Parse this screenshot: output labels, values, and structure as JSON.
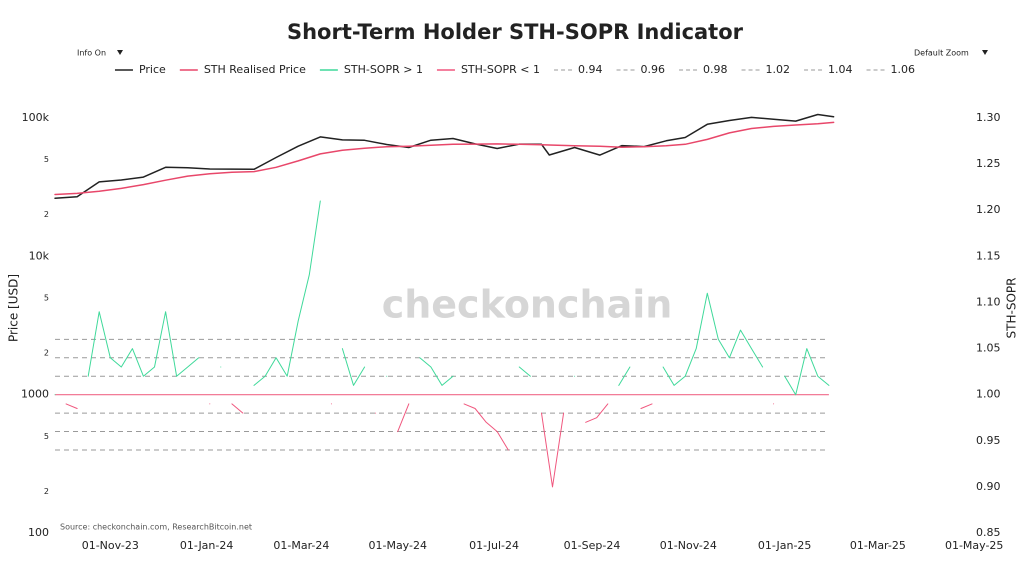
{
  "chart_data": {
    "type": "line",
    "title": "Short-Term Holder STH-SOPR Indicator",
    "controls": {
      "info": "Info On",
      "zoom": "Default Zoom"
    },
    "source": "Source: checkonchain.com, ResearchBitcoin.net",
    "watermark": "checkonchain",
    "y_label": "Price [USD]",
    "y2_label": "STH-SOPR",
    "log_y": true,
    "grid": false,
    "xlim": [
      "2023-09-27",
      "2025-05-11"
    ],
    "xticks": [
      {
        "value": "2023-11-01",
        "label": "01-Nov-23"
      },
      {
        "value": "2024-01-01",
        "label": "01-Jan-24"
      },
      {
        "value": "2024-03-01",
        "label": "01-Mar-24"
      },
      {
        "value": "2024-05-01",
        "label": "01-May-24"
      },
      {
        "value": "2024-07-01",
        "label": "01-Jul-24"
      },
      {
        "value": "2024-09-01",
        "label": "01-Sep-24"
      },
      {
        "value": "2024-11-01",
        "label": "01-Nov-24"
      },
      {
        "value": "2025-01-01",
        "label": "01-Jan-25"
      },
      {
        "value": "2025-03-01",
        "label": "01-Mar-25"
      },
      {
        "value": "2025-05-01",
        "label": "01-May-25"
      }
    ],
    "ylim": [
      100,
      100000
    ],
    "yticks": [
      100,
      {
        "value": 200,
        "label": "2"
      },
      {
        "value": 500,
        "label": "5"
      },
      1000,
      {
        "value": 2000,
        "label": "2"
      },
      {
        "value": 5000,
        "label": "5"
      },
      {
        "value": 10000,
        "label": "10k"
      },
      {
        "value": 20000,
        "label": "2"
      },
      {
        "value": 50000,
        "label": "5"
      },
      {
        "value": 100000,
        "label": "100k"
      }
    ],
    "y2lim": [
      0.85,
      1.3
    ],
    "y2ticks": [
      0.85,
      {
        "value": 0.9,
        "label": "0.90"
      },
      0.95,
      {
        "value": 1,
        "label": "1.00"
      },
      1.05,
      {
        "value": 1.1,
        "label": "1.10"
      },
      1.15,
      {
        "value": 1.2,
        "label": "1.20"
      },
      1.25,
      {
        "value": 1.3,
        "label": "1.30"
      }
    ],
    "levels": [
      0.94,
      0.96,
      0.98,
      1.02,
      1.04,
      1.06
    ],
    "level_color": "#9a9a9a",
    "baseline": 1,
    "baseline_color": "#f06a8a",
    "series": [
      {
        "name": "Price",
        "color": "#222222",
        "axis": "y",
        "x": [
          "2023-09-27",
          "2023-10-11",
          "2023-10-25",
          "2023-11-08",
          "2023-11-22",
          "2023-12-06",
          "2023-12-20",
          "2024-01-03",
          "2024-01-17",
          "2024-01-31",
          "2024-02-14",
          "2024-02-28",
          "2024-03-13",
          "2024-03-27",
          "2024-04-10",
          "2024-04-24",
          "2024-05-08",
          "2024-05-22",
          "2024-06-05",
          "2024-06-19",
          "2024-07-03",
          "2024-07-17",
          "2024-07-31",
          "2024-08-05",
          "2024-08-21",
          "2024-09-06",
          "2024-09-20",
          "2024-10-04",
          "2024-10-18",
          "2024-10-30",
          "2024-11-13",
          "2024-11-27",
          "2024-12-11",
          "2024-12-25",
          "2025-01-08",
          "2025-01-22",
          "2025-02-01"
        ],
        "values": [
          26300,
          27000,
          34500,
          35600,
          37400,
          44000,
          43700,
          42800,
          42700,
          42600,
          51800,
          62500,
          73000,
          69500,
          69000,
          64300,
          61200,
          69100,
          71100,
          65000,
          60200,
          64800,
          64600,
          54000,
          61200,
          53900,
          63200,
          62100,
          68400,
          72300,
          90000,
          96000,
          101000,
          98000,
          95000,
          106000,
          102000
        ]
      },
      {
        "name": "STH Realised Price",
        "color": "#e8476a",
        "axis": "y",
        "x": [
          "2023-09-27",
          "2023-10-11",
          "2023-10-25",
          "2023-11-08",
          "2023-11-22",
          "2023-12-06",
          "2023-12-20",
          "2024-01-03",
          "2024-01-17",
          "2024-01-31",
          "2024-02-14",
          "2024-02-28",
          "2024-03-13",
          "2024-03-27",
          "2024-04-10",
          "2024-04-24",
          "2024-05-08",
          "2024-05-22",
          "2024-06-05",
          "2024-06-19",
          "2024-07-03",
          "2024-07-17",
          "2024-07-31",
          "2024-08-05",
          "2024-08-21",
          "2024-09-06",
          "2024-09-20",
          "2024-10-04",
          "2024-10-18",
          "2024-10-30",
          "2024-11-13",
          "2024-11-27",
          "2024-12-11",
          "2024-12-25",
          "2025-01-08",
          "2025-01-22",
          "2025-02-01"
        ],
        "values": [
          28000,
          28500,
          29500,
          31000,
          33000,
          35500,
          38000,
          39500,
          40500,
          41000,
          44000,
          49000,
          55000,
          58500,
          60500,
          62000,
          62500,
          63500,
          64500,
          64800,
          65000,
          64500,
          64000,
          63800,
          63000,
          62500,
          61500,
          62000,
          63000,
          64500,
          70000,
          78000,
          84000,
          87000,
          89000,
          91000,
          93000
        ]
      },
      {
        "name": "STH-SOPR > 1",
        "color": "#3fd99a",
        "axis": "y2",
        "x": [
          "2023-09-27",
          "2023-10-04",
          "2023-10-11",
          "2023-10-18",
          "2023-10-25",
          "2023-11-01",
          "2023-11-08",
          "2023-11-15",
          "2023-11-22",
          "2023-11-29",
          "2023-12-06",
          "2023-12-13",
          "2023-12-20",
          "2023-12-27",
          "2024-01-03",
          "2024-01-10",
          "2024-01-17",
          "2024-01-24",
          "2024-01-31",
          "2024-02-07",
          "2024-02-14",
          "2024-02-21",
          "2024-02-28",
          "2024-03-06",
          "2024-03-13",
          "2024-03-20",
          "2024-03-27",
          "2024-04-03",
          "2024-04-10",
          "2024-04-17",
          "2024-04-24",
          "2024-05-01",
          "2024-05-08",
          "2024-05-15",
          "2024-05-22",
          "2024-05-29",
          "2024-06-05",
          "2024-06-12",
          "2024-06-19",
          "2024-06-26",
          "2024-07-03",
          "2024-07-10",
          "2024-07-17",
          "2024-07-24",
          "2024-07-31",
          "2024-08-07",
          "2024-08-14",
          "2024-08-21",
          "2024-08-28",
          "2024-09-04",
          "2024-09-11",
          "2024-09-18",
          "2024-09-25",
          "2024-10-02",
          "2024-10-09",
          "2024-10-16",
          "2024-10-23",
          "2024-10-30",
          "2024-11-06",
          "2024-11-13",
          "2024-11-20",
          "2024-11-27",
          "2024-12-04",
          "2024-12-11",
          "2024-12-18",
          "2024-12-25",
          "2025-01-01",
          "2025-01-08",
          "2025-01-15",
          "2025-01-22",
          "2025-01-29"
        ],
        "values": [
          1.0,
          null,
          null,
          1.02,
          1.09,
          1.04,
          1.03,
          1.05,
          1.02,
          1.03,
          1.09,
          1.02,
          1.03,
          1.04,
          null,
          1.03,
          null,
          null,
          1.01,
          1.02,
          1.04,
          1.02,
          1.08,
          1.13,
          1.21,
          null,
          1.05,
          1.01,
          1.03,
          null,
          1.02,
          null,
          null,
          1.04,
          1.03,
          1.01,
          1.02,
          null,
          null,
          null,
          null,
          null,
          1.03,
          1.02,
          null,
          null,
          null,
          1.02,
          null,
          null,
          null,
          1.01,
          1.03,
          null,
          null,
          1.03,
          1.01,
          1.02,
          1.05,
          1.11,
          1.06,
          1.04,
          1.07,
          1.05,
          1.03,
          null,
          1.02,
          1.0,
          1.05,
          1.02,
          1.01
        ]
      },
      {
        "name": "STH-SOPR < 1",
        "color": "#f0577e",
        "axis": "y2",
        "x": [
          "2023-09-27",
          "2023-10-04",
          "2023-10-11",
          "2023-10-18",
          "2023-10-25",
          "2023-11-01",
          "2023-11-08",
          "2023-11-15",
          "2023-11-22",
          "2023-11-29",
          "2023-12-06",
          "2023-12-13",
          "2023-12-20",
          "2023-12-27",
          "2024-01-03",
          "2024-01-10",
          "2024-01-17",
          "2024-01-24",
          "2024-01-31",
          "2024-02-07",
          "2024-02-14",
          "2024-02-21",
          "2024-02-28",
          "2024-03-06",
          "2024-03-13",
          "2024-03-20",
          "2024-03-27",
          "2024-04-03",
          "2024-04-10",
          "2024-04-17",
          "2024-04-24",
          "2024-05-01",
          "2024-05-08",
          "2024-05-15",
          "2024-05-22",
          "2024-05-29",
          "2024-06-05",
          "2024-06-12",
          "2024-06-19",
          "2024-06-26",
          "2024-07-03",
          "2024-07-10",
          "2024-07-17",
          "2024-07-24",
          "2024-07-31",
          "2024-08-07",
          "2024-08-14",
          "2024-08-21",
          "2024-08-28",
          "2024-09-04",
          "2024-09-11",
          "2024-09-18",
          "2024-09-25",
          "2024-10-02",
          "2024-10-09",
          "2024-10-16",
          "2024-10-23",
          "2024-10-30",
          "2024-11-06",
          "2024-11-13",
          "2024-11-20",
          "2024-11-27",
          "2024-12-04",
          "2024-12-11",
          "2024-12-18",
          "2024-12-25",
          "2025-01-01",
          "2025-01-08",
          "2025-01-15",
          "2025-01-22",
          "2025-01-29"
        ],
        "values": [
          null,
          0.99,
          0.985,
          null,
          null,
          null,
          null,
          null,
          null,
          null,
          null,
          null,
          null,
          null,
          0.99,
          null,
          0.99,
          0.98,
          null,
          null,
          null,
          null,
          null,
          null,
          null,
          0.99,
          null,
          null,
          null,
          0.98,
          null,
          0.96,
          0.99,
          null,
          null,
          null,
          null,
          0.99,
          0.985,
          0.97,
          0.96,
          0.94,
          null,
          null,
          0.98,
          0.9,
          0.98,
          null,
          0.97,
          0.975,
          0.99,
          null,
          null,
          0.985,
          0.99,
          null,
          null,
          null,
          null,
          null,
          null,
          null,
          null,
          null,
          null,
          0.99,
          null,
          null,
          null,
          null,
          null
        ]
      }
    ]
  }
}
